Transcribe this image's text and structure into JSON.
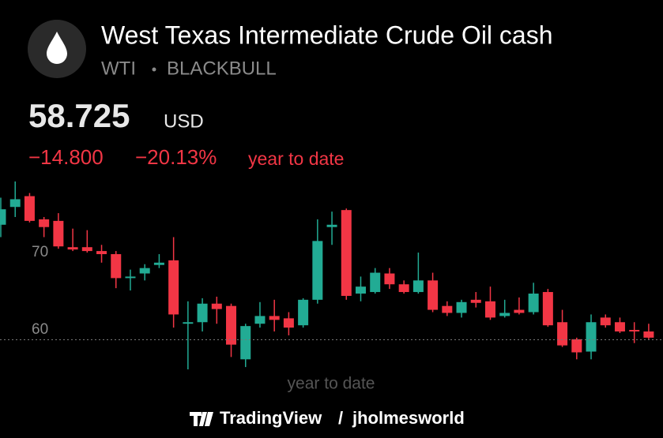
{
  "header": {
    "title": "West Texas Intermediate Crude Oil cash",
    "symbol": "WTI",
    "exchange": "BLACKBULL",
    "price": 58.725,
    "currency": "USD",
    "change": "−14.800",
    "change_percent": "−20.13%",
    "period": "year to date"
  },
  "chart_data": {
    "type": "candlestick",
    "x_label": "year to date",
    "categories": [
      null,
      null,
      null,
      null,
      null,
      null,
      null,
      null,
      null,
      null,
      null,
      null,
      null,
      null,
      null,
      null,
      null,
      null,
      null,
      null,
      null,
      null,
      null,
      null,
      null,
      null,
      null,
      null,
      null,
      null,
      null,
      null,
      null,
      null,
      null,
      null,
      null,
      null,
      null,
      null,
      null,
      null,
      null,
      null,
      null,
      null
    ],
    "open": [
      73.6,
      75.9,
      77.3,
      74.3,
      74.1,
      70.7,
      70.7,
      70.2,
      69.8,
      66.7,
      67.3,
      68.4,
      69.0,
      60.8,
      61.0,
      63.4,
      63.1,
      56.2,
      60.8,
      61.8,
      61.5,
      60.6,
      63.9,
      73.3,
      75.5,
      64.7,
      64.9,
      67.3,
      65.9,
      64.9,
      66.4,
      63.1,
      62.2,
      63.9,
      63.7,
      61.8,
      62.6,
      62.3,
      64.9,
      61.0,
      58.8,
      57.2,
      61.6,
      61.0,
      60.0,
      59.8
    ],
    "high": [
      77.1,
      79.2,
      77.7,
      74.6,
      75.1,
      73.1,
      72.9,
      71.0,
      70.2,
      67.8,
      68.5,
      69.8,
      72.0,
      63.7,
      64.1,
      64.3,
      63.4,
      60.8,
      63.6,
      63.9,
      62.3,
      64.1,
      74.3,
      75.3,
      75.7,
      66.9,
      68.0,
      68.0,
      66.4,
      70.0,
      67.4,
      63.7,
      63.9,
      64.9,
      65.6,
      63.9,
      64.2,
      66.1,
      65.3,
      62.6,
      59.0,
      62.0,
      62.0,
      61.6,
      61.0,
      60.8
    ],
    "low": [
      72.0,
      74.6,
      73.9,
      72.0,
      70.5,
      70.2,
      70.0,
      68.7,
      65.4,
      65.1,
      66.4,
      68.0,
      60.3,
      54.9,
      59.8,
      60.8,
      56.5,
      55.2,
      60.3,
      59.8,
      59.3,
      60.3,
      63.4,
      71.0,
      63.9,
      63.7,
      64.7,
      65.3,
      64.7,
      64.7,
      62.3,
      61.8,
      61.6,
      62.9,
      61.3,
      61.6,
      62.0,
      62.0,
      60.4,
      57.8,
      56.2,
      56.2,
      60.3,
      59.6,
      58.3,
      58.8
    ],
    "close": [
      75.6,
      76.9,
      74.1,
      73.3,
      70.8,
      70.4,
      70.2,
      69.8,
      66.7,
      66.9,
      68.0,
      68.7,
      62.0,
      61.0,
      63.4,
      62.7,
      58.1,
      60.5,
      61.8,
      61.3,
      60.3,
      63.9,
      71.5,
      73.6,
      64.4,
      65.6,
      67.4,
      65.9,
      64.9,
      66.4,
      62.6,
      62.2,
      63.6,
      63.5,
      61.6,
      62.2,
      62.2,
      64.7,
      60.6,
      58.0,
      57.1,
      61.0,
      60.6,
      59.8,
      59.8,
      59.0
    ],
    "up_color": "#22ab94",
    "down_color": "#f23645",
    "ylim": [
      54.7,
      79.7
    ],
    "yticks": [
      60,
      70
    ],
    "grid": false
  },
  "footer": {
    "brand": "TradingView",
    "separator": "/",
    "author": "jholmesworld"
  }
}
